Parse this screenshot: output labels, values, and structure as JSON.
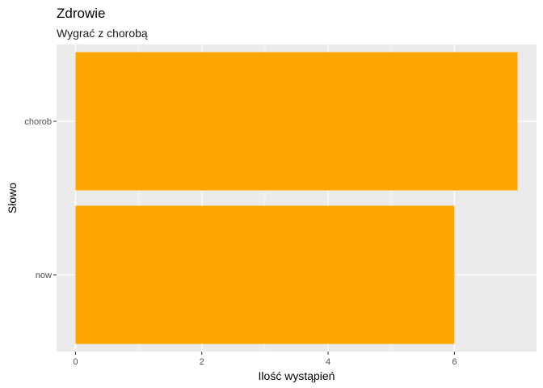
{
  "chart_data": {
    "type": "bar",
    "orientation": "horizontal",
    "title": "Zdrowie",
    "subtitle": "Wygrać z chorobą",
    "xlabel": "Ilość wystąpień",
    "ylabel": "Słowo",
    "categories": [
      "chorob",
      "now"
    ],
    "values": [
      7,
      6
    ],
    "xlim": [
      -0.3,
      7.3
    ],
    "xticks": [
      0,
      2,
      4,
      6
    ],
    "bar_color": "#FFA500",
    "panel_background": "#EBEBEB",
    "grid_color": "#FFFFFF",
    "grid": true,
    "legend": "none"
  }
}
